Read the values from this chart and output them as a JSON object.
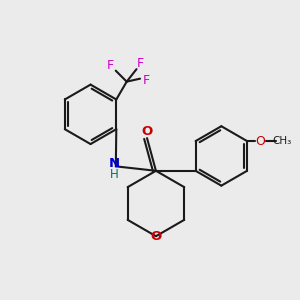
{
  "bg_color": "#ebebeb",
  "bond_color": "#1a1a1a",
  "N_color": "#0000cc",
  "O_color": "#cc0000",
  "F_color": "#cc00cc",
  "H_color": "#007070",
  "line_width": 1.5,
  "fig_w": 3.0,
  "fig_h": 3.0,
  "dpi": 100,
  "xlim": [
    0,
    10
  ],
  "ylim": [
    0,
    10
  ]
}
